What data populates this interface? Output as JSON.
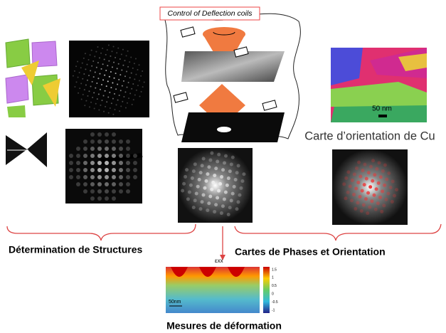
{
  "top": {
    "coil_label": "Control of Deflection coils"
  },
  "orientation_map": {
    "scale_bar": "50 nm",
    "caption": "Carte d’orientation de Cu"
  },
  "sections": [
    "Détermination de Structures",
    "Cartes de Phases et Orientation",
    "Mesures de déformation"
  ],
  "strain_map": {
    "symbol": "εxx",
    "scale_bar": "50nm",
    "colorbar_labels": [
      "1.5",
      "1",
      "0.5",
      "0",
      "-0.5",
      "-1"
    ]
  }
}
